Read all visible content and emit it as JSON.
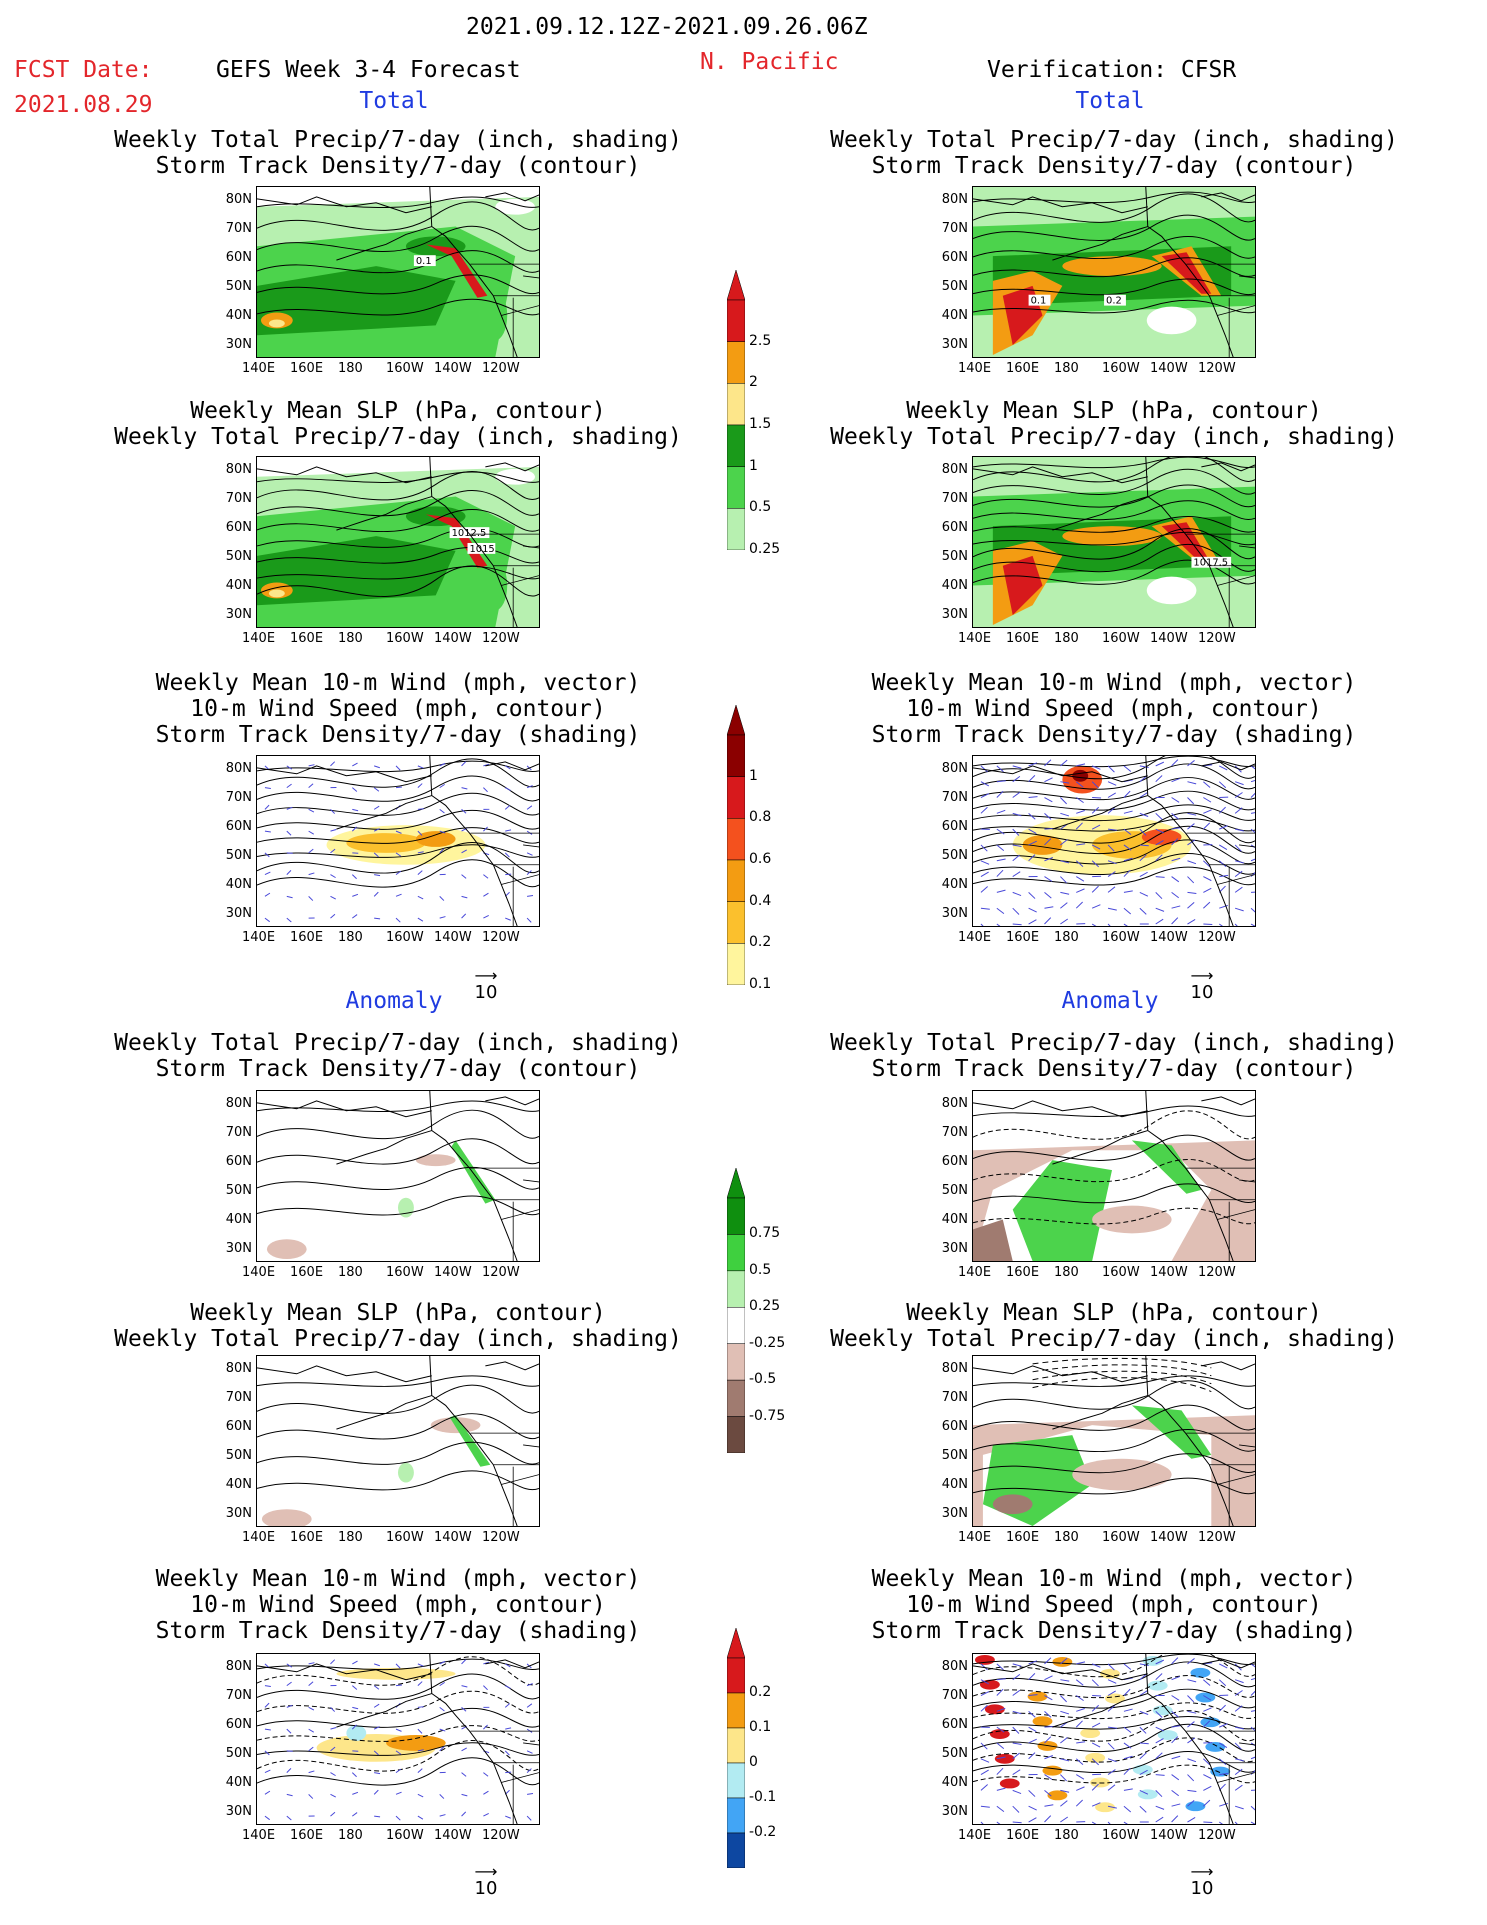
{
  "header": {
    "date_range": "2021.09.12.12Z-2021.09.26.06Z",
    "region": "N. Pacific",
    "fcst_label": "FCST Date:",
    "fcst_date": "2021.08.29",
    "model_title": "GEFS Week 3-4 Forecast",
    "verification": "Verification: CFSR"
  },
  "sections": {
    "total": "Total",
    "anomaly": "Anomaly"
  },
  "panel_titles": {
    "precip_std": [
      "Weekly Total Precip/7-day (inch, shading)",
      "Storm Track Density/7-day (contour)"
    ],
    "slp_precip": [
      "Weekly Mean SLP (hPa, contour)",
      "Weekly Total Precip/7-day (inch, shading)"
    ],
    "wind_std": [
      "Weekly Mean 10-m Wind (mph, vector)",
      "10-m Wind Speed (mph, contour)",
      "Storm Track Density/7-day (shading)"
    ]
  },
  "axes": {
    "lat_ticks": [
      "80N",
      "70N",
      "60N",
      "50N",
      "40N",
      "30N"
    ],
    "lon_ticks": [
      "140E",
      "160E",
      "180",
      "160W",
      "140W",
      "120W"
    ]
  },
  "vector_ref": "10",
  "colorbars": {
    "precip_total": {
      "labels": [
        "2.5",
        "2",
        "1.5",
        "1",
        "0.5",
        "0.25"
      ],
      "colors": [
        "#d7191c",
        "#f39c12",
        "#fde68a",
        "#1a9a1a",
        "#4cd34c",
        "#b7f0b0"
      ]
    },
    "std_total": {
      "labels": [
        "1",
        "0.8",
        "0.6",
        "0.4",
        "0.2",
        "0.1"
      ],
      "colors": [
        "#8b0000",
        "#d7191c",
        "#f4511e",
        "#f39c12",
        "#fbc02d",
        "#fff59d"
      ]
    },
    "precip_anom": {
      "labels": [
        "0.75",
        "0.5",
        "0.25",
        "-0.25",
        "-0.5",
        "-0.75"
      ],
      "colors": [
        "#0f8f0f",
        "#3fd03f",
        "#b7f0b0",
        "#ffffff",
        "#e0bfb5",
        "#a07b70",
        "#6b4a40"
      ]
    },
    "std_anom": {
      "labels": [
        "0.2",
        "0.1",
        "0",
        "-0.1",
        "-0.2"
      ],
      "colors": [
        "#d7191c",
        "#f39c12",
        "#fde68a",
        "#b2ebf2",
        "#42a5f5",
        "#0d47a1"
      ]
    }
  },
  "contour_labels": {
    "fc_precip": "0.1",
    "cf_precip_a": "0.1",
    "cf_precip_b": "0.2",
    "fc_slp_a": "1012.5",
    "fc_slp_b": "1015",
    "cf_slp": "1017.5"
  }
}
